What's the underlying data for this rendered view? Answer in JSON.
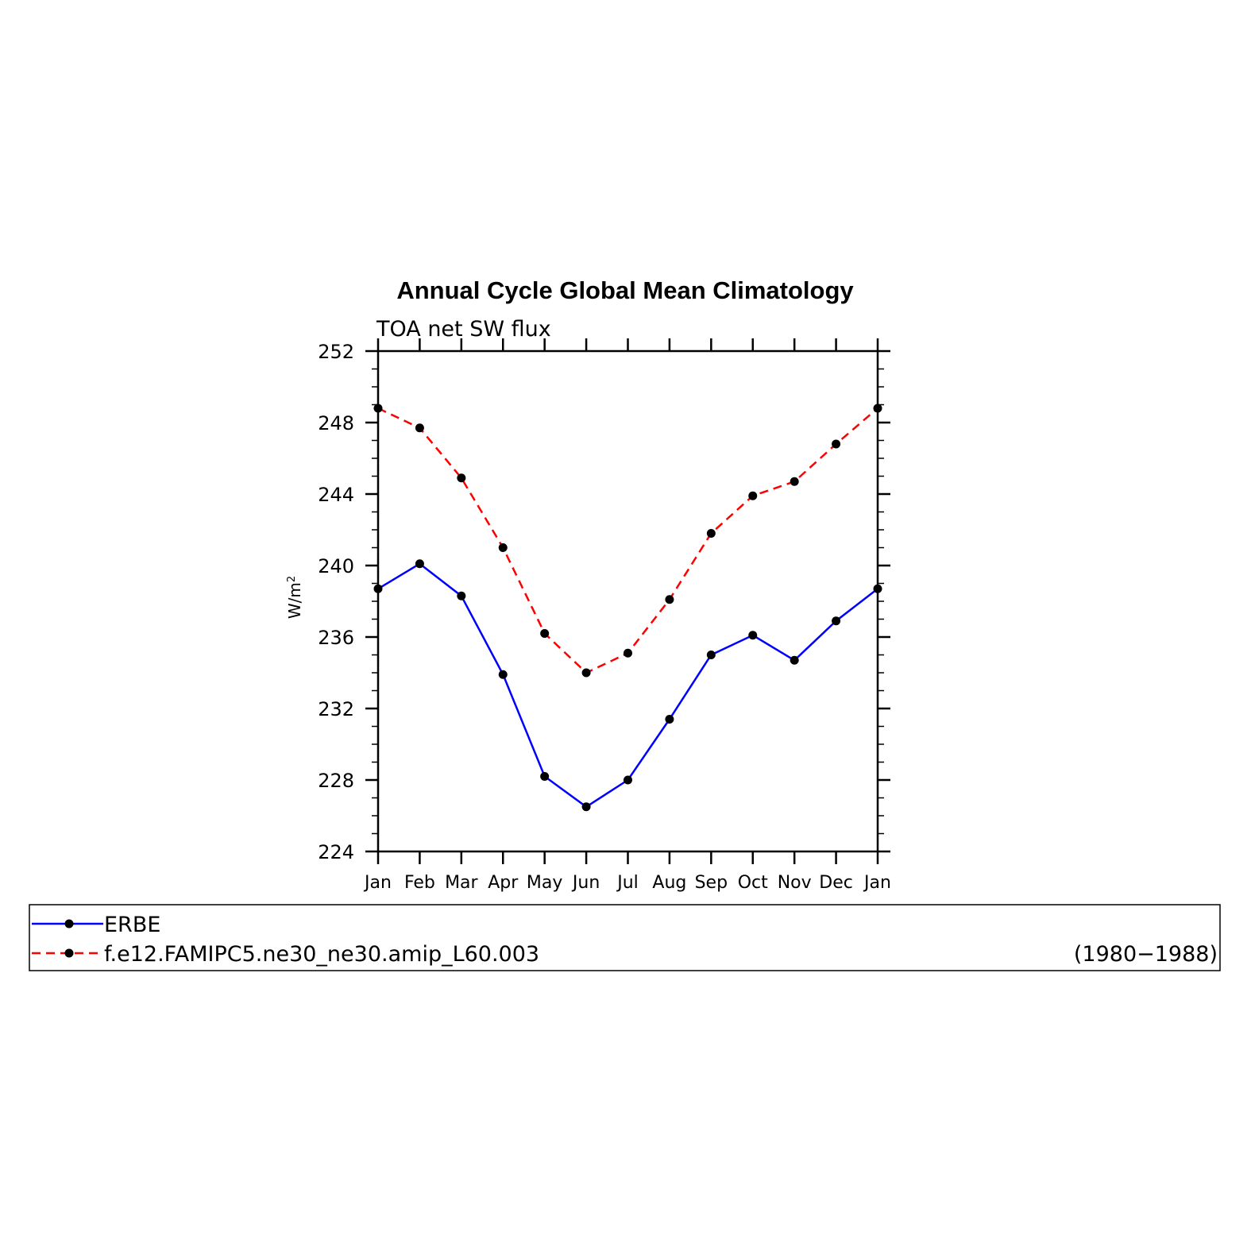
{
  "chart_data": {
    "type": "line",
    "title": "Annual Cycle Global Mean Climatology",
    "subtitle": "TOA net SW flux",
    "ylabel": "W/m",
    "ylabel_superscript": "2",
    "ylim": [
      224,
      252
    ],
    "yticks": [
      "224",
      "228",
      "232",
      "236",
      "240",
      "244",
      "248",
      "252"
    ],
    "categories": [
      "Jan",
      "Feb",
      "Mar",
      "Apr",
      "May",
      "Jun",
      "Jul",
      "Aug",
      "Sep",
      "Oct",
      "Nov",
      "Dec",
      "Jan"
    ],
    "grid": false,
    "series": [
      {
        "name": "ERBE",
        "color": "#0000ff",
        "dash": "solid",
        "values": [
          238.7,
          240.1,
          238.3,
          233.9,
          228.2,
          226.5,
          228.0,
          231.4,
          235.0,
          236.1,
          234.7,
          236.9,
          238.7
        ]
      },
      {
        "name": "f.e12.FAMIPC5.ne30_ne30.amip_L60.003",
        "color": "#ff0000",
        "dash": "dashed",
        "values": [
          248.8,
          247.7,
          244.9,
          241.0,
          236.2,
          234.0,
          235.1,
          238.1,
          241.8,
          243.9,
          244.7,
          246.8,
          248.8
        ]
      }
    ],
    "legend": {
      "placement": "bottom",
      "note": "(1980−1988)"
    }
  }
}
